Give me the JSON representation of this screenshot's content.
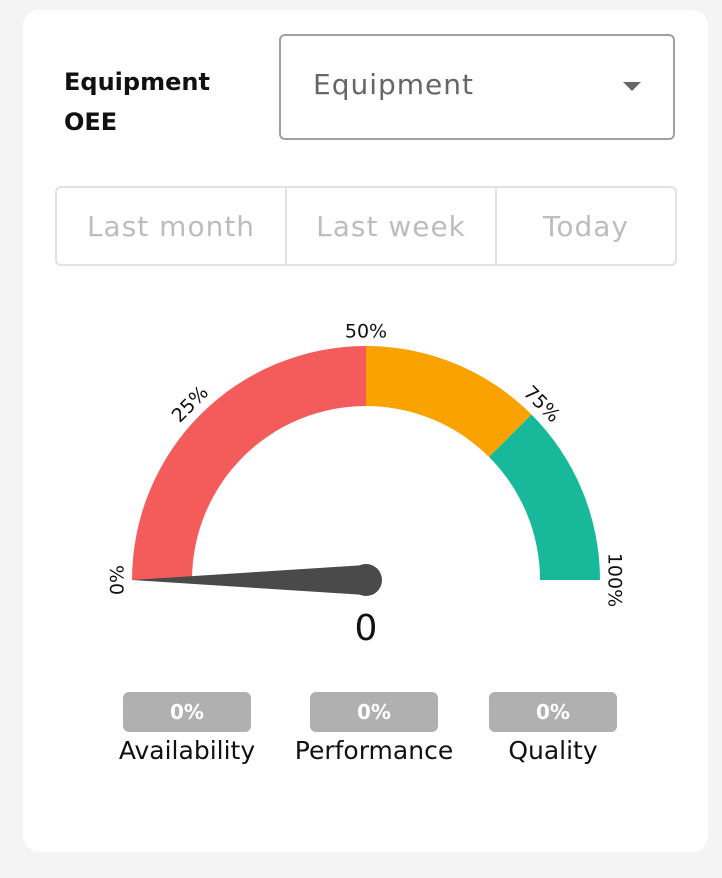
{
  "header": {
    "title": "Equipment OEE"
  },
  "equipment_select": {
    "value": "Equipment"
  },
  "range_tabs": [
    "Last month",
    "Last week",
    "Today"
  ],
  "gauge": {
    "value": 0,
    "value_label": "0",
    "ticks": [
      "0%",
      "25%",
      "50%",
      "75%",
      "100%"
    ],
    "bands": [
      {
        "from": 0,
        "to": 50,
        "color": "#f45b5b"
      },
      {
        "from": 50,
        "to": 75,
        "color": "#f9a200"
      },
      {
        "from": 75,
        "to": 100,
        "color": "#17b99a"
      }
    ],
    "needle_color": "#4a4a4a"
  },
  "metrics": [
    {
      "value": "0%",
      "label": "Availability"
    },
    {
      "value": "0%",
      "label": "Performance"
    },
    {
      "value": "0%",
      "label": "Quality"
    }
  ]
}
